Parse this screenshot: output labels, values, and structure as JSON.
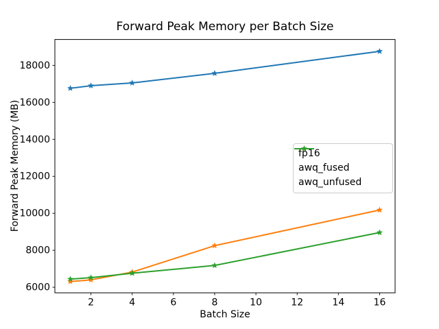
{
  "chart_data": {
    "type": "line",
    "title": "Forward Peak Memory per Batch Size",
    "xlabel": "Batch Size",
    "ylabel": "Forward Peak Memory (MB)",
    "x": [
      1,
      2,
      4,
      8,
      16
    ],
    "series": [
      {
        "name": "fp16",
        "color": "#1f77b4",
        "marker": "star",
        "values": [
          16760,
          16900,
          17050,
          17570,
          18760
        ]
      },
      {
        "name": "awq_fused",
        "color": "#ff7f0e",
        "marker": "star",
        "values": [
          6310,
          6400,
          6820,
          8250,
          10180
        ]
      },
      {
        "name": "awq_unfused",
        "color": "#2ca02c",
        "marker": "star",
        "values": [
          6440,
          6520,
          6760,
          7180,
          8960
        ]
      }
    ],
    "xticks": [
      2,
      4,
      6,
      8,
      10,
      12,
      14,
      16
    ],
    "yticks": [
      6000,
      8000,
      10000,
      12000,
      14000,
      16000,
      18000
    ],
    "xlim": [
      0.25,
      16.75
    ],
    "ylim": [
      5700,
      19400
    ],
    "grid": false,
    "legend_position": "center right",
    "axis_color": "#000000",
    "background_color": "#ffffff"
  }
}
